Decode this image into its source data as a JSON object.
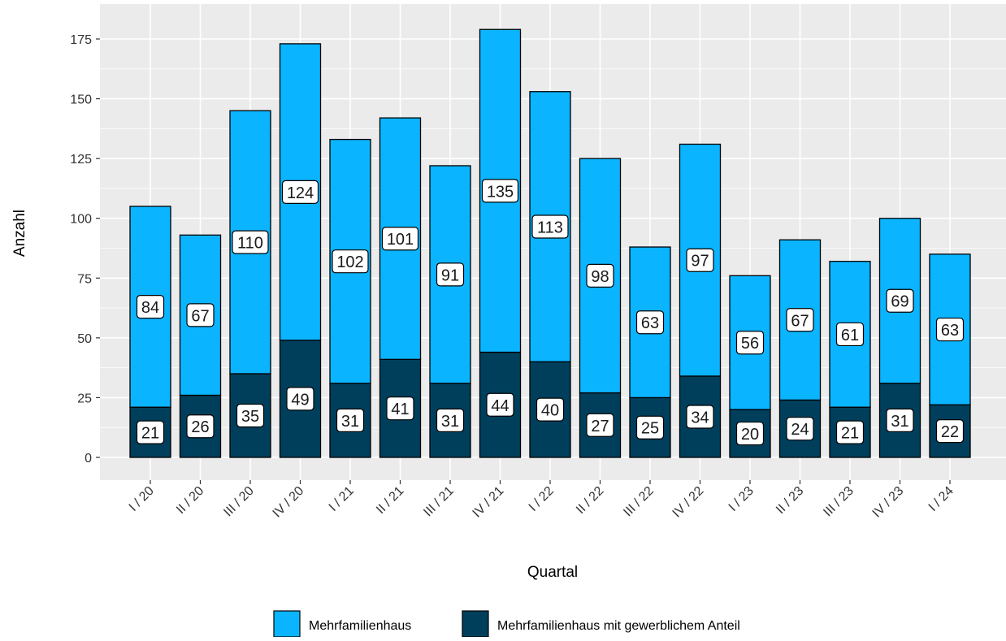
{
  "chart_data": {
    "type": "bar",
    "stacked": true,
    "title": "",
    "xlabel": "Quartal",
    "ylabel": "Anzahl",
    "ylim": [
      0,
      180
    ],
    "yticks": [
      0,
      25,
      50,
      75,
      100,
      125,
      150,
      175
    ],
    "ytick_labels": [
      "0",
      "25",
      "50",
      "75",
      "100",
      "125",
      "150",
      "175"
    ],
    "grid": true,
    "legend_position": "bottom",
    "categories": [
      "I / 20",
      "II / 20",
      "III / 20",
      "IV / 20",
      "I / 21",
      "II / 21",
      "III / 21",
      "IV / 21",
      "I / 22",
      "II / 22",
      "III / 22",
      "IV / 22",
      "I / 23",
      "II / 23",
      "III / 23",
      "IV / 23",
      "I / 24"
    ],
    "series": [
      {
        "name": "Mehrfamilienhaus mit gewerblichem Anteil",
        "color": "#003F5C",
        "values": [
          21,
          26,
          35,
          49,
          31,
          41,
          31,
          44,
          40,
          27,
          25,
          34,
          20,
          24,
          21,
          31,
          22
        ]
      },
      {
        "name": "Mehrfamilienhaus",
        "color": "#0BB4FF",
        "values": [
          84,
          67,
          110,
          124,
          102,
          101,
          91,
          135,
          113,
          98,
          63,
          97,
          56,
          67,
          61,
          69,
          63
        ]
      }
    ],
    "legend_order": [
      "Mehrfamilienhaus",
      "Mehrfamilienhaus mit gewerblichem Anteil"
    ]
  }
}
